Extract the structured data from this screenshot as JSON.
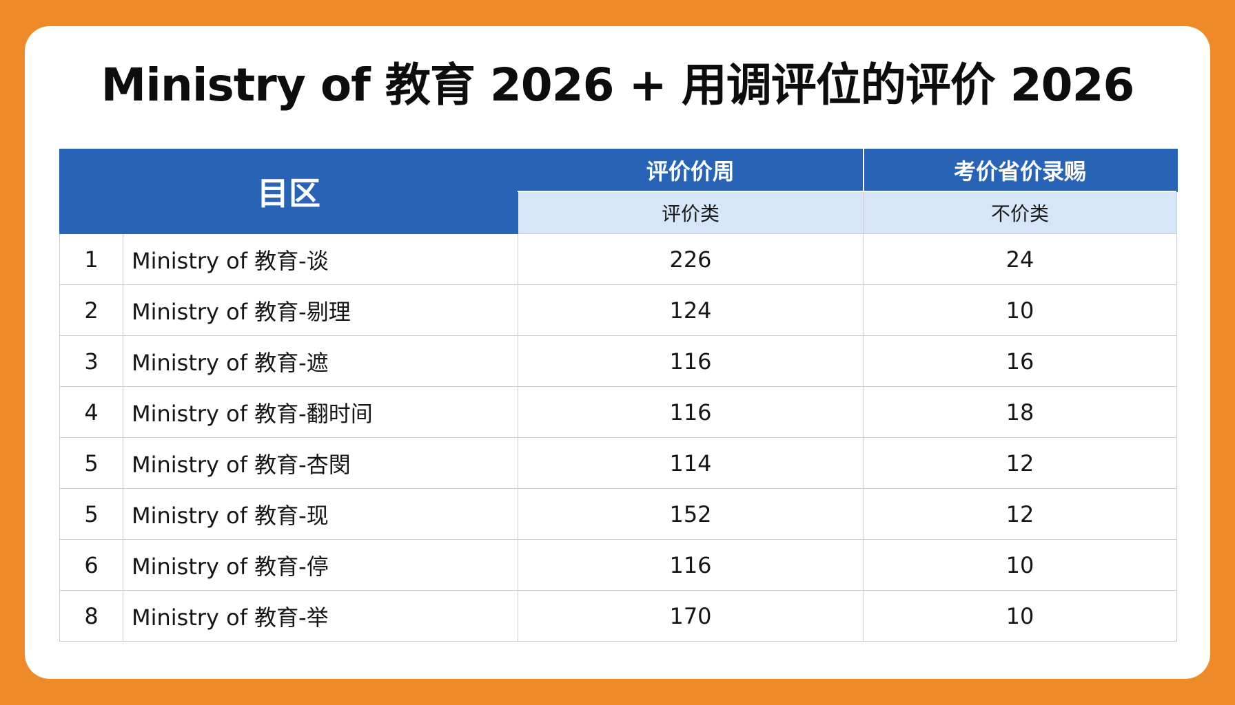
{
  "title": "Ministry of 教育 2026 + 用调评位的评价 2026",
  "table": {
    "headers": {
      "region": "目区",
      "group1": "评价价周",
      "group1_sub": "评价类",
      "group2": "考价省价录赐",
      "group2_sub": "不价类"
    },
    "rows": [
      {
        "no": "1",
        "name": "Ministry of 教育-谈",
        "v1": "226",
        "v2": "24"
      },
      {
        "no": "2",
        "name": "Ministry of 教育-剔理",
        "v1": "124",
        "v2": "10"
      },
      {
        "no": "3",
        "name": "Ministry of 教育-遮",
        "v1": "116",
        "v2": "16"
      },
      {
        "no": "4",
        "name": "Ministry of 教育-翻时间",
        "v1": "116",
        "v2": "18"
      },
      {
        "no": "5",
        "name": "Ministry of 教育-杏閔",
        "v1": "114",
        "v2": "12"
      },
      {
        "no": "5",
        "name": "Ministry of 教育-现",
        "v1": "152",
        "v2": "12"
      },
      {
        "no": "6",
        "name": "Ministry of 教育-停",
        "v1": "116",
        "v2": "10"
      },
      {
        "no": "8",
        "name": "Ministry of 教育-举",
        "v1": "170",
        "v2": "10"
      }
    ]
  }
}
